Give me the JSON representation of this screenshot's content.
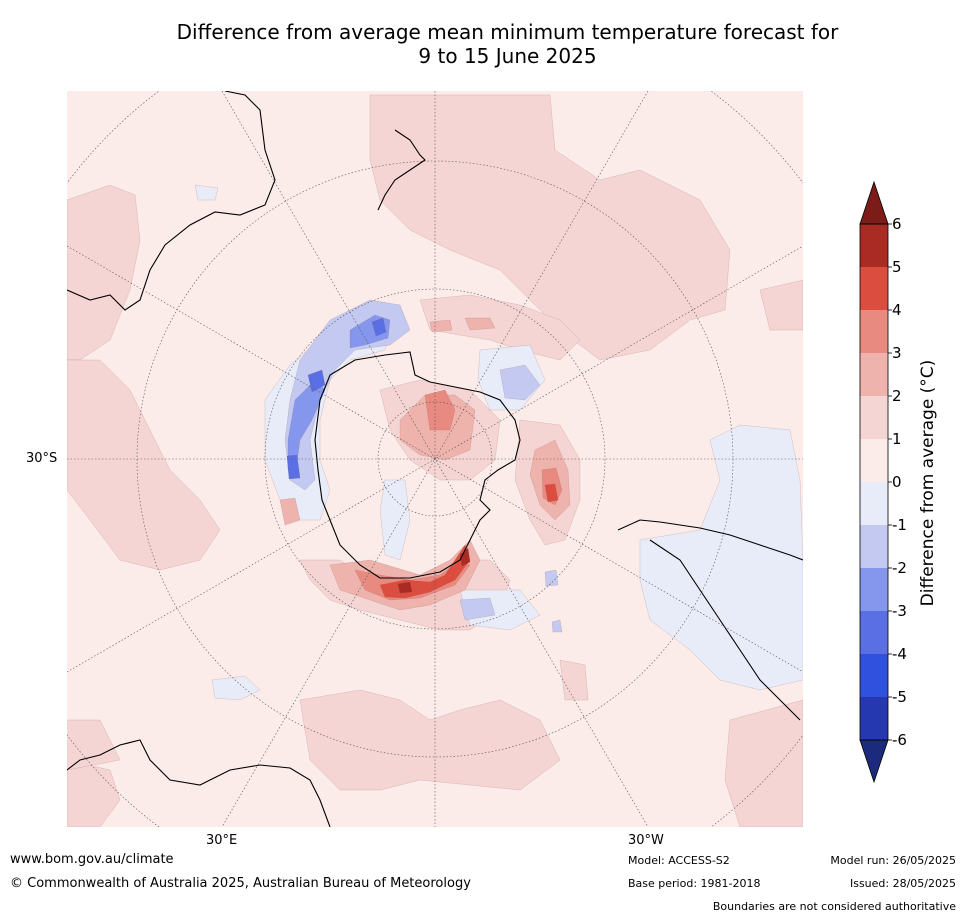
{
  "title": {
    "line1": "Difference from average mean minimum temperature forecast for",
    "line2": "9 to 15 June 2025"
  },
  "map": {
    "projection": "south-polar-stereographic",
    "lat_label": "30°S",
    "lon_labels": [
      "30°E",
      "30°W"
    ],
    "colors": {
      "ocean_base": "#fbebe9",
      "c_0_1": "#fbebe9",
      "c_1_2": "#f5d5d3",
      "c_2_3": "#efb3ad",
      "c_3_4": "#e98a80",
      "c_4_5": "#db4e3f",
      "c_5_6": "#a92b24",
      "c_over_6": "#7b1c18",
      "c_m1_0": "#e8ebf8",
      "c_m2_m1": "#c3c9f1",
      "c_m3_m2": "#8597ed",
      "c_m4_m3": "#5a6fe4",
      "c_m5_m4": "#2f51de",
      "c_m6_m5": "#2638b0",
      "c_under_m6": "#1b2a7c",
      "coastline": "#000000",
      "borders": "#808080"
    }
  },
  "colorbar": {
    "label": "Difference from average (°C)",
    "ticks": [
      "6",
      "5",
      "4",
      "3",
      "2",
      "1",
      "0",
      "-1",
      "-2",
      "-3",
      "-4",
      "-5",
      "-6"
    ],
    "levels": [
      6,
      5,
      4,
      3,
      2,
      1,
      0,
      -1,
      -2,
      -3,
      -4,
      -5,
      -6
    ],
    "bands": [
      "#a92b24",
      "#db4e3f",
      "#e98a80",
      "#efb3ad",
      "#f5d5d3",
      "#fbebe9",
      "#e8ebf8",
      "#c3c9f1",
      "#8597ed",
      "#5a6fe4",
      "#2f51de",
      "#2638b0"
    ],
    "extend_over": "#7b1c18",
    "extend_under": "#1b2a7c"
  },
  "footer": {
    "url": "www.bom.gov.au/climate",
    "copyright": "© Commonwealth of Australia 2025, Australian Bureau of Meteorology",
    "model": "Model: ACCESS-S2",
    "base_period": "Base period: 1981-2018",
    "model_run": "Model run: 26/05/2025",
    "issued": "Issued: 28/05/2025",
    "disclaimer": "Boundaries are not considered authoritative"
  }
}
